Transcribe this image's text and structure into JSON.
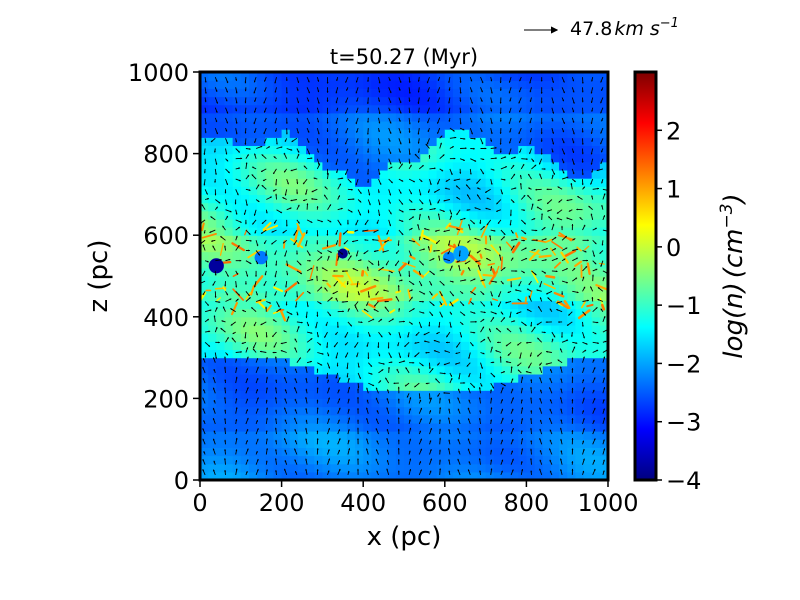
{
  "chart_data": {
    "type": "heatmap",
    "title": "t=50.27 (Myr)",
    "xlabel": "x (pc)",
    "ylabel": "z (pc)",
    "xlim": [
      0,
      1000
    ],
    "ylim": [
      0,
      1000
    ],
    "xticks": [
      "0",
      "200",
      "400",
      "600",
      "800",
      "1000"
    ],
    "yticks": [
      "0",
      "200",
      "400",
      "600",
      "800",
      "1000"
    ],
    "colorbar": {
      "label_main": "log(n)",
      "label_unit": "(cm",
      "label_exp": "−3",
      "label_close": ")",
      "range": [
        -4,
        3
      ],
      "ticks": [
        "−4",
        "−3",
        "−2",
        "−1",
        "0",
        "1",
        "2"
      ],
      "colormap": "jet"
    },
    "quiver_key": {
      "value": "47.8",
      "unit": "km s",
      "exp": "−1"
    },
    "field_description": {
      "halo_log_n": -2.4,
      "disk_log_n": -1.0,
      "midplane_z": 520,
      "dense_filament_log_n": 1.3,
      "bubbles": [
        {
          "x": 40,
          "z": 525,
          "log_n": -3.8
        },
        {
          "x": 150,
          "z": 545,
          "log_n": -2.3
        },
        {
          "x": 350,
          "z": 555,
          "log_n": -3.9
        },
        {
          "x": 610,
          "z": 545,
          "log_n": -2.2
        },
        {
          "x": 640,
          "z": 555,
          "log_n": -2.0
        }
      ]
    }
  }
}
